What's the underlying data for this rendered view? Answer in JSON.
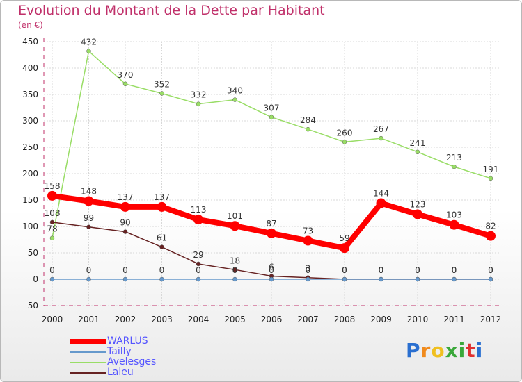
{
  "header": {
    "title": "Evolution du Montant de la Dette par Habitant",
    "unit": "(en €)"
  },
  "logo": {
    "text": "Proxiti"
  },
  "chart_data": {
    "type": "line",
    "x": [
      "2000",
      "2001",
      "2002",
      "2003",
      "2004",
      "2005",
      "2006",
      "2007",
      "2008",
      "2009",
      "2010",
      "2011",
      "2012"
    ],
    "ylim": [
      -50,
      450
    ],
    "yticks": [
      -50,
      0,
      50,
      100,
      150,
      200,
      250,
      300,
      350,
      400,
      450
    ],
    "grid": true,
    "legend": "bottom-left",
    "series": [
      {
        "name": "WARLUS",
        "color": "#ff0000",
        "width": 8,
        "marker": 7,
        "values": [
          158,
          148,
          137,
          137,
          113,
          101,
          87,
          73,
          59,
          144,
          123,
          103,
          82
        ],
        "labels": [
          "158",
          "148",
          "137",
          "137",
          "113",
          "101",
          "87",
          "73",
          "59",
          "144",
          "123",
          "103",
          "82"
        ]
      },
      {
        "name": "Tailly",
        "color": "#6699cc",
        "width": 1.5,
        "marker": 3,
        "values": [
          0,
          0,
          0,
          0,
          0,
          0,
          0,
          0,
          0,
          0,
          0,
          0,
          0
        ],
        "labels": [
          "0",
          "0",
          "0",
          "0",
          "0",
          "0",
          "0",
          "0",
          "0",
          "0",
          "0",
          "0",
          "0"
        ]
      },
      {
        "name": "Avelesges",
        "color": "#99dd66",
        "width": 1.5,
        "marker": 3,
        "values": [
          78,
          432,
          370,
          352,
          332,
          340,
          307,
          284,
          260,
          267,
          241,
          213,
          191
        ],
        "labels": [
          "78",
          "432",
          "370",
          "352",
          "332",
          "340",
          "307",
          "284",
          "260",
          "267",
          "241",
          "213",
          "191"
        ]
      },
      {
        "name": "Laleu",
        "color": "#662222",
        "width": 1.5,
        "marker": 3,
        "values": [
          108,
          99,
          90,
          61,
          29,
          18,
          6,
          3,
          0,
          0,
          0,
          0,
          0
        ],
        "labels": [
          "108",
          "99",
          "90",
          "61",
          "29",
          "18",
          "6",
          "3",
          "0",
          "0",
          "0",
          "0",
          "0"
        ]
      }
    ]
  }
}
